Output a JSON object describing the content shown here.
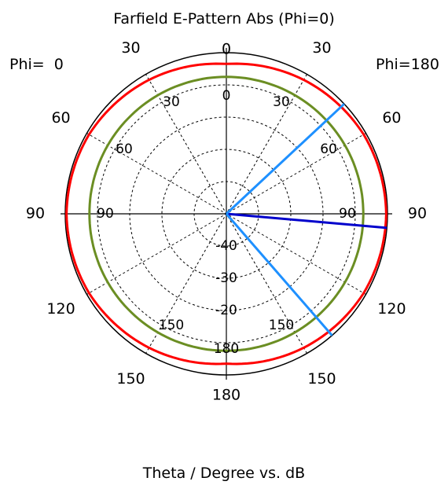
{
  "chart_data": {
    "type": "polar",
    "title": "Farfield E-Pattern Abs (Phi=0)",
    "xlabel": "Theta / Degree vs. dB",
    "phi_left_label": "Phi=  0",
    "phi_right_label": "Phi=180",
    "outer_angle_labels": [
      "0",
      "30",
      "60",
      "90",
      "120",
      "150",
      "180"
    ],
    "inner_angle_labels": [
      "0",
      "30",
      "60",
      "90",
      "150",
      "180"
    ],
    "radial_tick_labels": [
      "-40",
      "-30",
      "-20"
    ],
    "rlim_db": [
      -50,
      0
    ],
    "grid": true,
    "series": [
      {
        "name": "",
        "color": "#ff0000",
        "theta_deg": [
          0,
          30,
          60,
          90,
          120,
          150,
          180
        ],
        "value_db": [
          -3.5,
          -2.0,
          -0.8,
          -0.4,
          -0.8,
          -2.0,
          -3.5
        ]
      },
      {
        "name": "",
        "color": "#6b8e23",
        "theta_deg": [
          0,
          30,
          60,
          90,
          120,
          150,
          180
        ],
        "value_db": [
          -7.5,
          -7.5,
          -7.5,
          -7.5,
          -7.5,
          -7.5,
          -7.5
        ]
      }
    ],
    "markers": [
      {
        "theta_deg": 95,
        "value_db": 0,
        "color": "#0000cc"
      },
      {
        "theta_deg": 47,
        "value_db": 0,
        "color": "#1e90ff"
      },
      {
        "theta_deg": 139,
        "value_db": 0,
        "color": "#1e90ff"
      }
    ]
  }
}
